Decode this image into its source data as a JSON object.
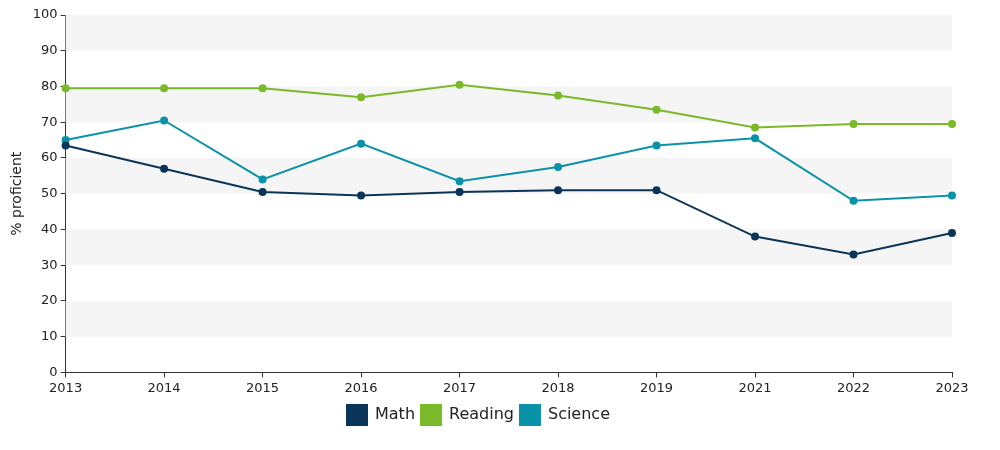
{
  "chart_data": {
    "type": "line",
    "categories": [
      "2013",
      "2014",
      "2015",
      "2016",
      "2017",
      "2018",
      "2019",
      "2021",
      "2022",
      "2023"
    ],
    "series": [
      {
        "name": "Math",
        "color": "#0b3558",
        "values": [
          63.5,
          57,
          50.5,
          49.5,
          50.5,
          51,
          51,
          38,
          33,
          39
        ]
      },
      {
        "name": "Reading",
        "color": "#7ab929",
        "values": [
          79.5,
          79.5,
          79.5,
          77,
          80.5,
          77.5,
          73.5,
          68.5,
          69.5,
          69.5
        ]
      },
      {
        "name": "Science",
        "color": "#0a93a8",
        "values": [
          65,
          70.5,
          54,
          64,
          53.5,
          57.5,
          63.5,
          65.5,
          48,
          49.5
        ]
      }
    ],
    "y_label": "% proficient",
    "ylim": [
      0,
      100
    ],
    "yticks": [
      0,
      10,
      20,
      30,
      40,
      50,
      60,
      70,
      80,
      90,
      100
    ],
    "grid": true,
    "legend": "bottom",
    "marker": "circle"
  }
}
